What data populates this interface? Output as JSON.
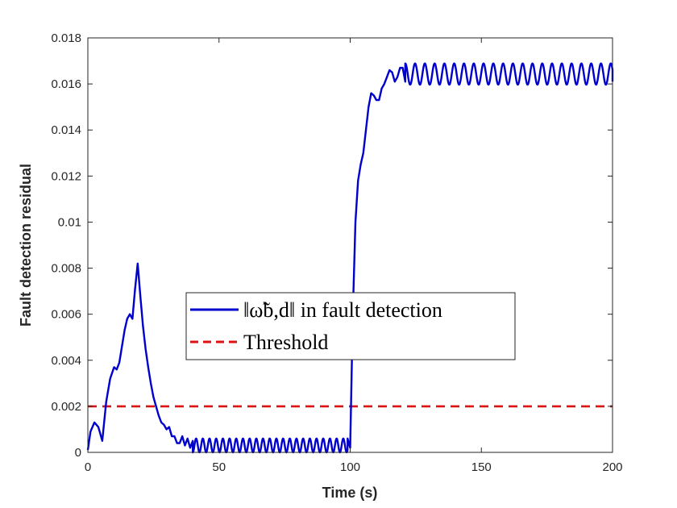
{
  "chart_data": {
    "type": "line",
    "title": "",
    "xlabel": "Time (s)",
    "ylabel": "Fault detection residual",
    "xlim": [
      0,
      200
    ],
    "ylim": [
      0,
      0.018
    ],
    "xticks": [
      0,
      50,
      100,
      150,
      200
    ],
    "xtick_labels": [
      "0",
      "50",
      "100",
      "150",
      "200"
    ],
    "yticks": [
      0,
      0.002,
      0.004,
      0.006,
      0.008,
      0.01,
      0.012,
      0.014,
      0.016,
      0.018
    ],
    "ytick_labels": [
      "0",
      "0.002",
      "0.004",
      "0.006",
      "0.008",
      "0.01",
      "0.012",
      "0.014",
      "0.016",
      "0.018"
    ],
    "grid": false,
    "legend_placement": "center-left",
    "series": [
      {
        "name": "‖ω̃b,d‖ in fault detection",
        "color": "#0000cc",
        "style": "solid",
        "x": [
          0,
          1,
          2.5,
          4,
          5.5,
          7,
          8.5,
          10,
          11,
          12,
          13,
          14,
          15,
          16,
          17,
          18,
          19,
          20,
          21,
          22,
          23,
          24,
          25,
          26,
          27,
          28,
          29,
          30,
          31,
          32,
          33,
          34,
          35,
          36,
          37,
          38,
          39,
          40,
          99,
          100,
          101,
          102,
          103,
          104,
          105,
          106,
          107,
          108,
          109,
          110,
          111,
          112,
          113,
          114,
          115,
          116,
          117,
          118,
          119,
          120,
          121,
          200
        ],
        "y": [
          0.0001,
          0.0009,
          0.0013,
          0.0011,
          0.0005,
          0.0022,
          0.0032,
          0.0037,
          0.0036,
          0.0039,
          0.0046,
          0.0053,
          0.0058,
          0.006,
          0.0058,
          0.0071,
          0.0082,
          0.0068,
          0.0055,
          0.0045,
          0.0037,
          0.003,
          0.0024,
          0.002,
          0.0016,
          0.0013,
          0.0012,
          0.001,
          0.0011,
          0.0007,
          0.0007,
          0.0004,
          0.0004,
          0.0007,
          0.0003,
          0.0006,
          0.0002,
          0.0005,
          0.0006,
          0.0002,
          0.006,
          0.01,
          0.0118,
          0.0125,
          0.013,
          0.014,
          0.015,
          0.0156,
          0.0155,
          0.0153,
          0.0153,
          0.0158,
          0.016,
          0.0163,
          0.0166,
          0.0165,
          0.0161,
          0.0163,
          0.0167,
          0.0167,
          0.0161,
          0.0161
        ],
        "oscillations": [
          {
            "x_start": 40,
            "x_end": 99,
            "center": 0.0003,
            "amplitude": 0.0003,
            "period": 2.55
          },
          {
            "x_start": 121,
            "x_end": 200,
            "center": 0.01643,
            "amplitude": 0.00046,
            "period": 3.73
          }
        ]
      },
      {
        "name": "Threshold",
        "color": "#dd1111",
        "style": "dashed",
        "x": [
          0,
          200
        ],
        "y": [
          0.002,
          0.002
        ]
      }
    ]
  }
}
